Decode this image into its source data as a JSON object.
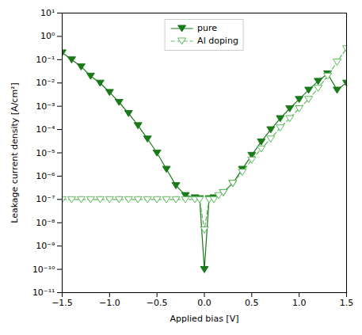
{
  "chart_data": {
    "type": "line",
    "xlabel": "Applied bias [V]",
    "ylabel": "Leakage current density [A/cm²]",
    "log": "y",
    "grid": false,
    "legend": "upper center",
    "xlim": [
      -1.5,
      1.5
    ],
    "ylim": [
      1e-11,
      10
    ],
    "xticks": [
      {
        "value": -1.5,
        "label": "−1.5"
      },
      {
        "value": -1.0,
        "label": "−1.0"
      },
      {
        "value": -0.5,
        "label": "−0.5"
      },
      {
        "value": 0.0,
        "label": "0.0"
      },
      {
        "value": 0.5,
        "label": "0.5"
      },
      {
        "value": 1.0,
        "label": "1.0"
      },
      {
        "value": 1.5,
        "label": "1.5"
      }
    ],
    "yticks": [
      {
        "value": 1e-11,
        "label": "10⁻¹¹"
      },
      {
        "value": 1e-10,
        "label": "10⁻¹⁰"
      },
      {
        "value": 1e-09,
        "label": "10⁻⁹"
      },
      {
        "value": 1e-08,
        "label": "10⁻⁸"
      },
      {
        "value": 1e-07,
        "label": "10⁻⁷"
      },
      {
        "value": 1e-06,
        "label": "10⁻⁶"
      },
      {
        "value": 1e-05,
        "label": "10⁻⁵"
      },
      {
        "value": 0.0001,
        "label": "10⁻⁴"
      },
      {
        "value": 0.001,
        "label": "10⁻³"
      },
      {
        "value": 0.01,
        "label": "10⁻²"
      },
      {
        "value": 0.1,
        "label": "10⁻¹"
      },
      {
        "value": 1,
        "label": "10⁰"
      },
      {
        "value": 10,
        "label": "10¹"
      }
    ],
    "series": [
      {
        "name": "pure",
        "color": "#1a7a1a",
        "marker": "triangle_down_filled",
        "line_style": "solid",
        "x": [
          -1.5,
          -1.4,
          -1.3,
          -1.2,
          -1.1,
          -1.0,
          -0.9,
          -0.8,
          -0.7,
          -0.6,
          -0.5,
          -0.4,
          -0.3,
          -0.2,
          -0.1,
          -0.05,
          0.0,
          0.05,
          0.1,
          0.2,
          0.3,
          0.4,
          0.5,
          0.6,
          0.7,
          0.8,
          0.9,
          1.0,
          1.1,
          1.2,
          1.3,
          1.4,
          1.5
        ],
        "values": [
          0.2,
          0.1,
          0.05,
          0.02,
          0.01,
          0.004,
          0.0015,
          0.0005,
          0.00015,
          4e-05,
          1e-05,
          2e-06,
          4e-07,
          1.5e-07,
          1.2e-07,
          1.1e-07,
          1e-10,
          1.1e-07,
          1.2e-07,
          2e-07,
          5e-07,
          2e-06,
          8e-06,
          3e-05,
          0.0001,
          0.0003,
          0.0008,
          0.002,
          0.005,
          0.012,
          0.025,
          0.005,
          0.01
        ]
      },
      {
        "name": "Al doping",
        "color": "#5cb85c",
        "marker": "triangle_down_open",
        "line_style": "dashed",
        "x": [
          -1.5,
          -1.4,
          -1.3,
          -1.2,
          -1.1,
          -1.0,
          -0.9,
          -0.8,
          -0.7,
          -0.6,
          -0.5,
          -0.4,
          -0.3,
          -0.2,
          -0.1,
          -0.05,
          0.0,
          0.05,
          0.1,
          0.15,
          0.2,
          0.3,
          0.4,
          0.5,
          0.6,
          0.7,
          0.8,
          0.9,
          1.0,
          1.1,
          1.2,
          1.3,
          1.4,
          1.5
        ],
        "values": [
          1e-07,
          1e-07,
          1e-07,
          1e-07,
          1e-07,
          1e-07,
          1e-07,
          1e-07,
          1e-07,
          1e-07,
          1e-07,
          1e-07,
          1e-07,
          1e-07,
          1e-07,
          1e-07,
          5e-09,
          1e-07,
          1e-07,
          1.5e-07,
          2e-07,
          5e-07,
          1.5e-06,
          5e-06,
          1.5e-05,
          4e-05,
          0.00012,
          0.0003,
          0.0008,
          0.002,
          0.006,
          0.02,
          0.08,
          0.3
        ]
      }
    ]
  }
}
